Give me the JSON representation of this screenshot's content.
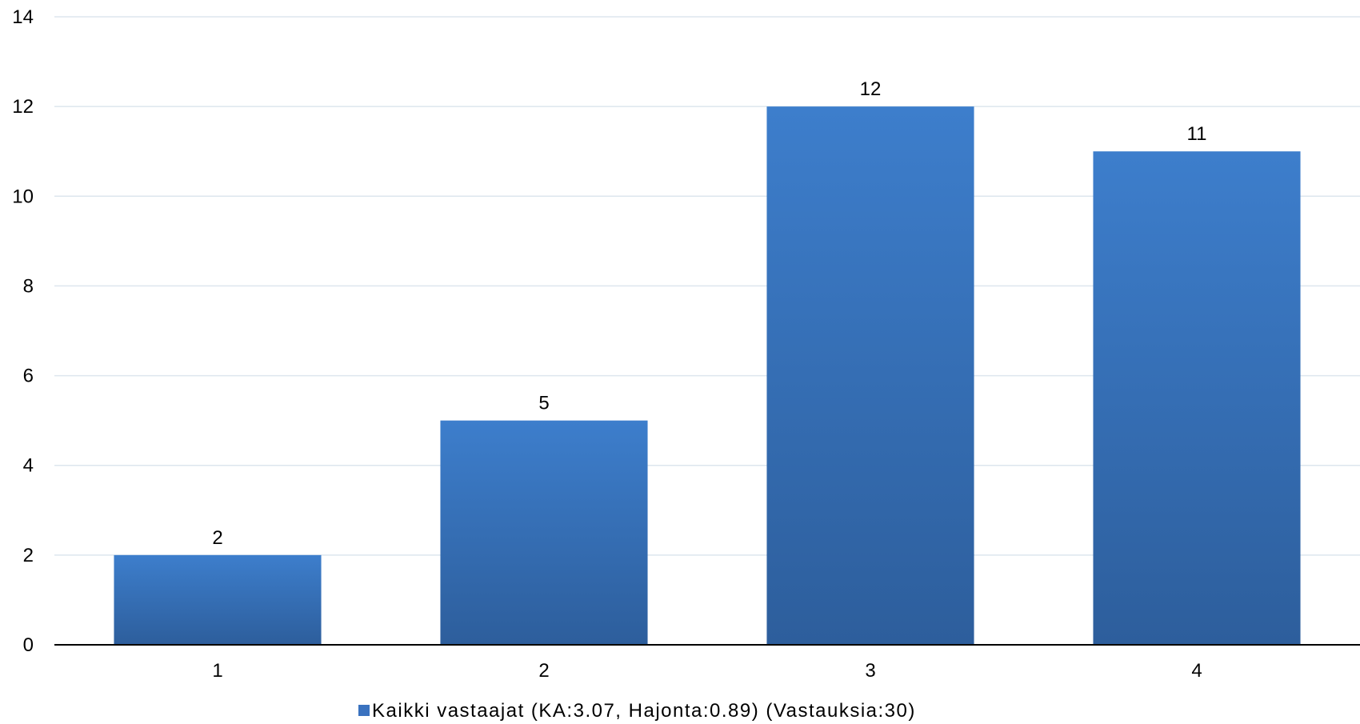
{
  "chart_data": {
    "type": "bar",
    "categories": [
      "1",
      "2",
      "3",
      "4"
    ],
    "series": [
      {
        "name": "Kaikki vastaajat (KA:3.07, Hajonta:0.89) (Vastauksia:30)",
        "values": [
          2,
          5,
          12,
          11
        ]
      }
    ],
    "ylim": [
      0,
      14
    ],
    "yticks": [
      0,
      2,
      4,
      6,
      8,
      10,
      12,
      14
    ],
    "grid": true,
    "legend": "bottom-center",
    "data_labels": true
  },
  "colors": {
    "bar_top": "#3d7ecc",
    "bar_bottom": "#2d5e9c",
    "legend_swatch": "#3a72bf",
    "gridline": "#dde6ee",
    "axis": "#000000"
  }
}
